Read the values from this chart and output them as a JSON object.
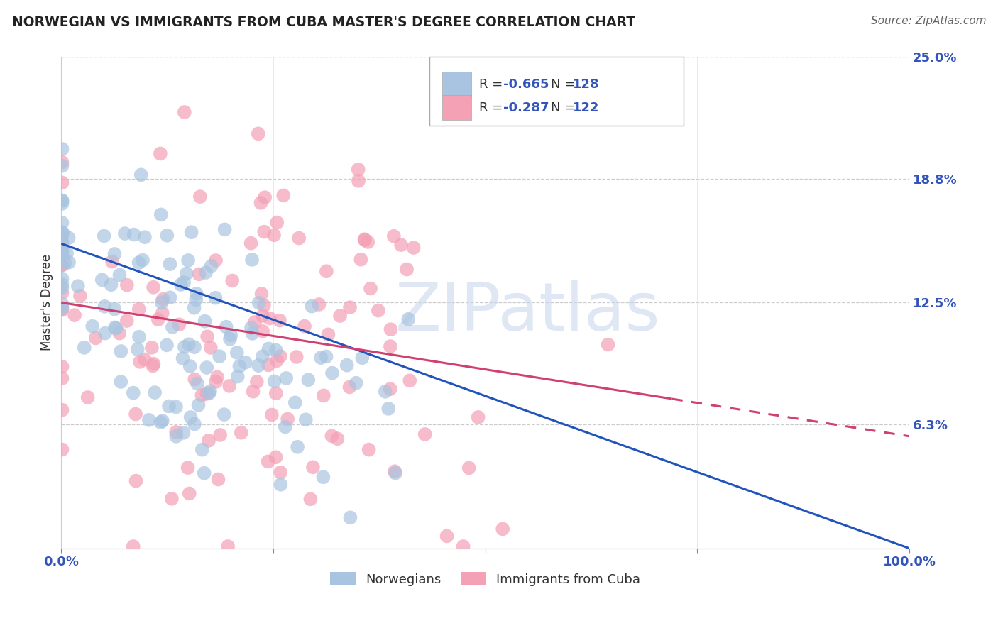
{
  "title": "NORWEGIAN VS IMMIGRANTS FROM CUBA MASTER'S DEGREE CORRELATION CHART",
  "source": "Source: ZipAtlas.com",
  "ylabel": "Master's Degree",
  "watermark_text": "ZIPatlas",
  "xlim": [
    0,
    1.0
  ],
  "ylim": [
    0,
    0.25
  ],
  "ytick_positions": [
    0.063,
    0.125,
    0.188,
    0.25
  ],
  "ytick_labels": [
    "6.3%",
    "12.5%",
    "18.8%",
    "25.0%"
  ],
  "norwegian_color": "#a8c4e0",
  "cuba_color": "#f4a0b5",
  "norwegian_line_color": "#2255bb",
  "cuba_line_color": "#d04070",
  "R_norwegian": -0.665,
  "N_norwegian": 128,
  "R_cuba": -0.287,
  "N_cuba": 122,
  "legend_label_1": "Norwegians",
  "legend_label_2": "Immigrants from Cuba",
  "title_color": "#222222",
  "source_color": "#666666",
  "axis_label_color": "#333333",
  "tick_color": "#3355bb",
  "grid_color": "#cccccc",
  "background_color": "#ffffff",
  "r_value_color": "#3355bb",
  "n_value_color": "#3355bb"
}
